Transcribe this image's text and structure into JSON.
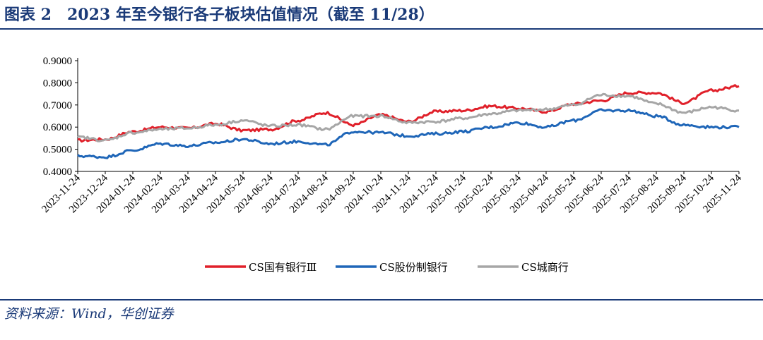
{
  "figure": {
    "title": "图表 2　2023 年至今银行各子板块估值情况（截至 11/28）",
    "source": "资料来源：Wind，华创证券"
  },
  "chart_data": {
    "type": "line",
    "title": "2023 年至今银行各子板块估值情况（截至 11/28）",
    "xlabel": "",
    "ylabel": "",
    "ylim": [
      0.4,
      0.9
    ],
    "yticks": [
      "0.9000",
      "0.8000",
      "0.7000",
      "0.6000",
      "0.5000",
      "0.4000"
    ],
    "x": [
      "2023-11-24",
      "2023-12-24",
      "2024-01-24",
      "2024-02-24",
      "2024-03-24",
      "2024-04-24",
      "2024-05-24",
      "2024-06-24",
      "2024-07-24",
      "2024-08-24",
      "2024-09-24",
      "2024-10-24",
      "2024-11-24",
      "2024-12-24",
      "2025-01-24",
      "2025-02-24",
      "2025-03-24",
      "2025-04-24",
      "2025-05-24",
      "2025-06-24",
      "2025-07-24",
      "2025-08-24",
      "2025-09-24",
      "2025-10-24",
      "2025-11-24"
    ],
    "grid": false,
    "legend_position": "bottom",
    "series": [
      {
        "name": "CS国有银行Ⅲ",
        "color": "#e0202a",
        "values": [
          0.54,
          0.545,
          0.58,
          0.6,
          0.595,
          0.615,
          0.585,
          0.59,
          0.63,
          0.665,
          0.61,
          0.655,
          0.625,
          0.67,
          0.675,
          0.695,
          0.685,
          0.67,
          0.705,
          0.72,
          0.755,
          0.755,
          0.71,
          0.765,
          0.785
        ]
      },
      {
        "name": "CS股份制银行",
        "color": "#1f66b8",
        "values": [
          0.47,
          0.465,
          0.495,
          0.525,
          0.515,
          0.53,
          0.545,
          0.525,
          0.535,
          0.52,
          0.58,
          0.575,
          0.56,
          0.57,
          0.58,
          0.6,
          0.62,
          0.6,
          0.63,
          0.675,
          0.675,
          0.65,
          0.61,
          0.6,
          0.6
        ]
      },
      {
        "name": "CS城商行",
        "color": "#a6a6a6",
        "values": [
          0.555,
          0.54,
          0.575,
          0.59,
          0.595,
          0.61,
          0.63,
          0.605,
          0.61,
          0.59,
          0.65,
          0.65,
          0.62,
          0.625,
          0.64,
          0.66,
          0.675,
          0.68,
          0.7,
          0.745,
          0.74,
          0.705,
          0.665,
          0.69,
          0.675
        ]
      }
    ]
  }
}
